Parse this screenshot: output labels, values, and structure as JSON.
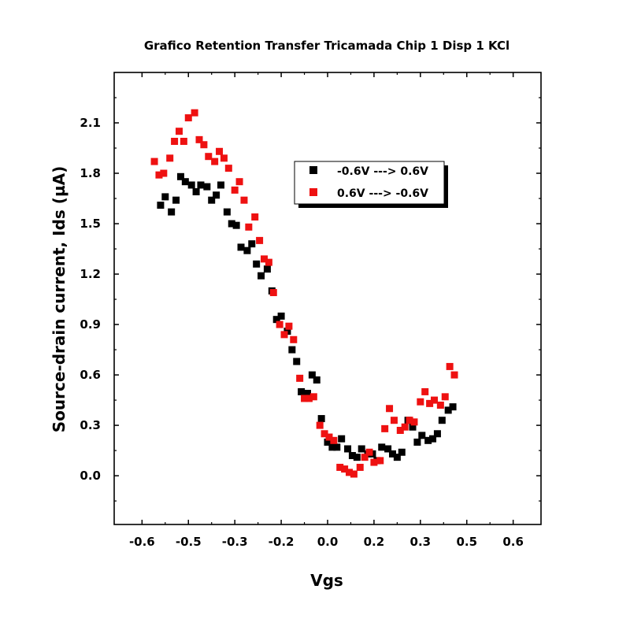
{
  "chart_data": {
    "type": "scatter",
    "title": "Grafico Retention Transfer Tricamada Chip 1 Disp 1 KCl",
    "xlabel": "Vgs",
    "ylabel": "Source-drain current, Ids (µA)",
    "xlim": [
      -0.69,
      0.69
    ],
    "ylim": [
      -0.29,
      2.4
    ],
    "xticks": [
      "-0.6",
      "-0.5",
      "-0.3",
      "-0.2",
      "0.0",
      "0.2",
      "0.3",
      "0.5",
      "0.6"
    ],
    "xtick_values": [
      -0.6,
      -0.45,
      -0.3,
      -0.15,
      0.0,
      0.15,
      0.3,
      0.45,
      0.6
    ],
    "yticks": [
      "0.0",
      "0.3",
      "0.6",
      "0.9",
      "1.2",
      "1.5",
      "1.8",
      "2.1"
    ],
    "ytick_values": [
      0.0,
      0.3,
      0.6,
      0.9,
      1.2,
      1.5,
      1.8,
      2.1
    ],
    "grid": false,
    "legend_position": "top-center",
    "series": [
      {
        "name": "-0.6V ---> 0.6V",
        "color": "#000000",
        "marker": "square",
        "points": [
          [
            -0.54,
            1.61
          ],
          [
            -0.525,
            1.66
          ],
          [
            -0.505,
            1.57
          ],
          [
            -0.49,
            1.64
          ],
          [
            -0.475,
            1.78
          ],
          [
            -0.46,
            1.75
          ],
          [
            -0.44,
            1.73
          ],
          [
            -0.425,
            1.69
          ],
          [
            -0.41,
            1.73
          ],
          [
            -0.39,
            1.72
          ],
          [
            -0.375,
            1.64
          ],
          [
            -0.36,
            1.67
          ],
          [
            -0.345,
            1.73
          ],
          [
            -0.325,
            1.57
          ],
          [
            -0.31,
            1.5
          ],
          [
            -0.295,
            1.49
          ],
          [
            -0.28,
            1.36
          ],
          [
            -0.26,
            1.34
          ],
          [
            -0.245,
            1.38
          ],
          [
            -0.23,
            1.26
          ],
          [
            -0.215,
            1.19
          ],
          [
            -0.195,
            1.23
          ],
          [
            -0.18,
            1.1
          ],
          [
            -0.165,
            0.93
          ],
          [
            -0.15,
            0.95
          ],
          [
            -0.13,
            0.86
          ],
          [
            -0.115,
            0.75
          ],
          [
            -0.1,
            0.68
          ],
          [
            -0.085,
            0.5
          ],
          [
            -0.065,
            0.49
          ],
          [
            -0.05,
            0.6
          ],
          [
            -0.035,
            0.57
          ],
          [
            -0.02,
            0.34
          ],
          [
            0.0,
            0.2
          ],
          [
            0.015,
            0.17
          ],
          [
            0.03,
            0.17
          ],
          [
            0.045,
            0.22
          ],
          [
            0.065,
            0.16
          ],
          [
            0.08,
            0.12
          ],
          [
            0.095,
            0.11
          ],
          [
            0.11,
            0.16
          ],
          [
            0.13,
            0.13
          ],
          [
            0.145,
            0.13
          ],
          [
            0.16,
            0.09
          ],
          [
            0.175,
            0.17
          ],
          [
            0.195,
            0.16
          ],
          [
            0.21,
            0.13
          ],
          [
            0.225,
            0.11
          ],
          [
            0.24,
            0.14
          ],
          [
            0.26,
            0.33
          ],
          [
            0.275,
            0.29
          ],
          [
            0.29,
            0.2
          ],
          [
            0.305,
            0.24
          ],
          [
            0.325,
            0.21
          ],
          [
            0.34,
            0.22
          ],
          [
            0.355,
            0.25
          ],
          [
            0.37,
            0.33
          ],
          [
            0.39,
            0.39
          ],
          [
            0.405,
            0.41
          ]
        ]
      },
      {
        "name": "0.6V ---> -0.6V",
        "color": "#ee1111",
        "marker": "square",
        "points": [
          [
            -0.56,
            1.87
          ],
          [
            -0.545,
            1.79
          ],
          [
            -0.53,
            1.8
          ],
          [
            -0.51,
            1.89
          ],
          [
            -0.495,
            1.99
          ],
          [
            -0.48,
            2.05
          ],
          [
            -0.465,
            1.99
          ],
          [
            -0.45,
            2.13
          ],
          [
            -0.43,
            2.16
          ],
          [
            -0.415,
            2.0
          ],
          [
            -0.4,
            1.97
          ],
          [
            -0.385,
            1.9
          ],
          [
            -0.365,
            1.87
          ],
          [
            -0.35,
            1.93
          ],
          [
            -0.335,
            1.89
          ],
          [
            -0.32,
            1.83
          ],
          [
            -0.3,
            1.7
          ],
          [
            -0.285,
            1.75
          ],
          [
            -0.27,
            1.64
          ],
          [
            -0.255,
            1.48
          ],
          [
            -0.235,
            1.54
          ],
          [
            -0.22,
            1.4
          ],
          [
            -0.205,
            1.29
          ],
          [
            -0.19,
            1.27
          ],
          [
            -0.175,
            1.09
          ],
          [
            -0.155,
            0.9
          ],
          [
            -0.14,
            0.84
          ],
          [
            -0.125,
            0.89
          ],
          [
            -0.11,
            0.81
          ],
          [
            -0.09,
            0.58
          ],
          [
            -0.075,
            0.46
          ],
          [
            -0.06,
            0.46
          ],
          [
            -0.045,
            0.47
          ],
          [
            -0.025,
            0.3
          ],
          [
            -0.01,
            0.25
          ],
          [
            0.005,
            0.23
          ],
          [
            0.02,
            0.21
          ],
          [
            0.04,
            0.05
          ],
          [
            0.055,
            0.04
          ],
          [
            0.07,
            0.02
          ],
          [
            0.085,
            0.01
          ],
          [
            0.105,
            0.05
          ],
          [
            0.12,
            0.11
          ],
          [
            0.135,
            0.14
          ],
          [
            0.15,
            0.08
          ],
          [
            0.17,
            0.09
          ],
          [
            0.185,
            0.28
          ],
          [
            0.2,
            0.4
          ],
          [
            0.215,
            0.33
          ],
          [
            0.235,
            0.27
          ],
          [
            0.25,
            0.29
          ],
          [
            0.265,
            0.33
          ],
          [
            0.28,
            0.32
          ],
          [
            0.3,
            0.44
          ],
          [
            0.315,
            0.5
          ],
          [
            0.33,
            0.43
          ],
          [
            0.345,
            0.45
          ],
          [
            0.365,
            0.42
          ],
          [
            0.38,
            0.47
          ],
          [
            0.395,
            0.65
          ],
          [
            0.41,
            0.6
          ]
        ]
      }
    ]
  }
}
